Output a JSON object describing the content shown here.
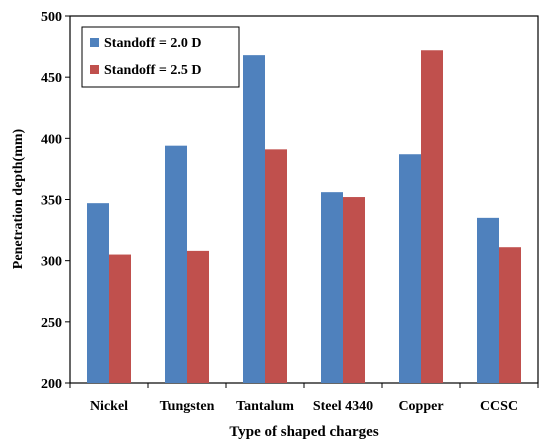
{
  "chart_data": {
    "type": "bar",
    "title": "",
    "xlabel": "Type of shaped charges",
    "ylabel": "Penetration depth(mm)",
    "ylim": [
      200,
      500
    ],
    "yticks": [
      200,
      250,
      300,
      350,
      400,
      450,
      500
    ],
    "categories": [
      "Nickel",
      "Tungsten",
      "Tantalum",
      "Steel 4340",
      "Copper",
      "CCSC"
    ],
    "series": [
      {
        "name": "Standoff = 2.0 D",
        "color": "#4f81bd",
        "values": [
          347,
          394,
          468,
          356,
          387,
          335
        ]
      },
      {
        "name": "Standoff = 2.5 D",
        "color": "#c0504d",
        "values": [
          305,
          308,
          391,
          352,
          472,
          311
        ]
      }
    ],
    "grid": false,
    "legend": "top-left, inside plot"
  }
}
